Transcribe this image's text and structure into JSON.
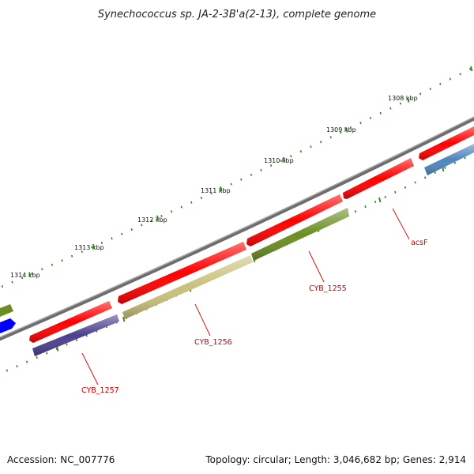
{
  "title": "Synechococcus sp. JA-2-3B'a(2-13), complete genome",
  "accession": "Accession: NC_007776",
  "summary": "Topology: circular; Length: 3,046,682 bp; Genes: 2,914",
  "colors": {
    "backbone": "#808080",
    "tick": "#2f7d1f",
    "label": "#cc0000",
    "leader": "#dd0000"
  },
  "ticks": [
    {
      "label": "1308 kbp"
    },
    {
      "label": "1309 kbp"
    },
    {
      "label": "1310 kbp"
    },
    {
      "label": "1311 kbp"
    },
    {
      "label": "1312 kbp"
    },
    {
      "label": "1313 kbp"
    },
    {
      "label": "1314 kbp"
    }
  ],
  "genes": [
    {
      "name": "acsF",
      "color": "#ff0000",
      "track": "outer"
    },
    {
      "name": "CYB_1255",
      "color": "#ff0000",
      "track": "outer"
    },
    {
      "name": "CYB_1256",
      "color": "#ff0000",
      "track": "outer"
    },
    {
      "name": "CYB_1257",
      "color": "#ff0000",
      "track": "outer"
    }
  ],
  "features": [
    {
      "color": "#4f86bf",
      "track": "inner"
    },
    {
      "color": "#6b8e23",
      "track": "inner"
    },
    {
      "color": "#c8c07a",
      "track": "inner"
    },
    {
      "color": "#4b3f8f",
      "track": "inner"
    },
    {
      "color": "#6b8e23",
      "track": "inner"
    },
    {
      "color": "#0000ff",
      "track": "inner"
    },
    {
      "color": "#ff0000",
      "track": "outer"
    }
  ]
}
